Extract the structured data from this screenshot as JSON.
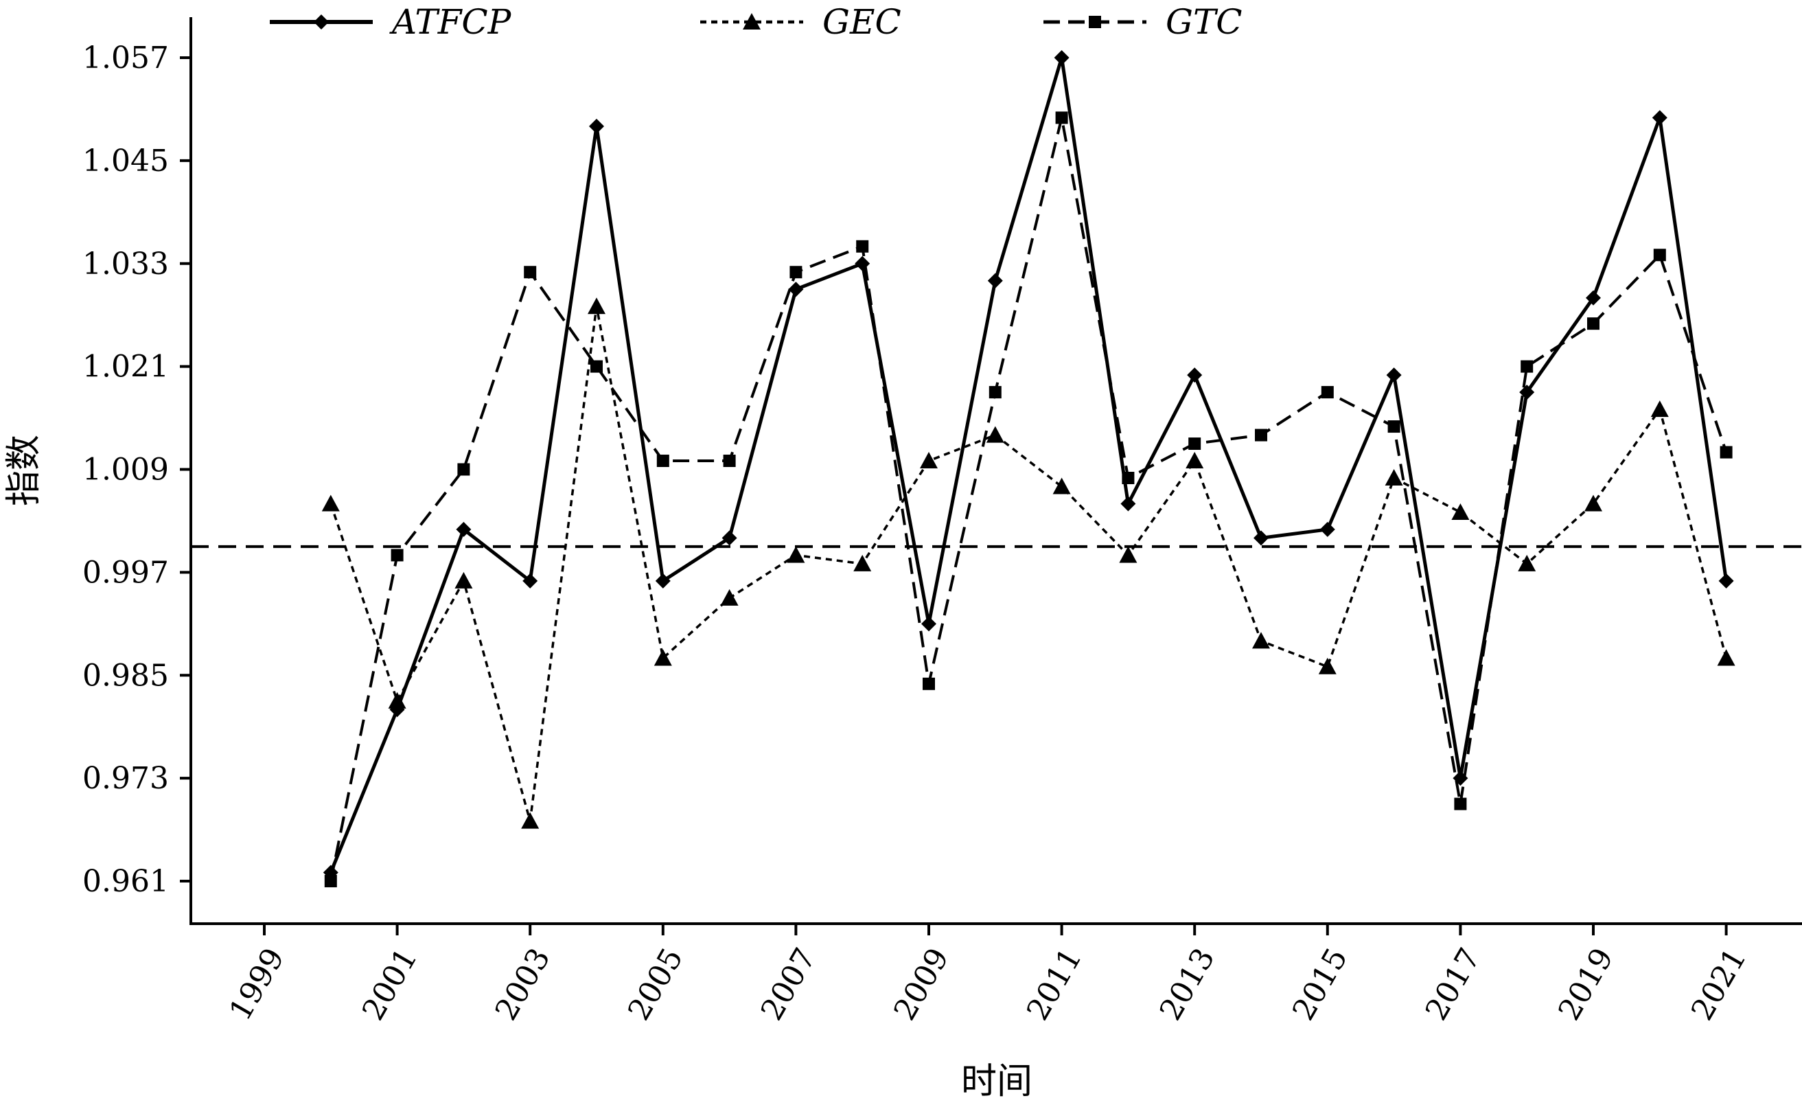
{
  "chart_data": {
    "type": "line",
    "title": "",
    "xlabel": "时间",
    "ylabel": "指数",
    "x": [
      2000,
      2001,
      2002,
      2003,
      2004,
      2005,
      2006,
      2007,
      2008,
      2009,
      2010,
      2011,
      2012,
      2013,
      2014,
      2015,
      2016,
      2017,
      2018,
      2019,
      2020,
      2021
    ],
    "x_ticks": [
      "1999",
      "2001",
      "2003",
      "2005",
      "2007",
      "2009",
      "2011",
      "2013",
      "2015",
      "2017",
      "2019",
      "2021"
    ],
    "y_ticks": [
      "0.961",
      "0.973",
      "0.985",
      "0.997",
      "1.009",
      "1.021",
      "1.033",
      "1.045",
      "1.057"
    ],
    "xlim": [
      1999,
      2022
    ],
    "ylim": [
      0.956,
      1.062
    ],
    "reference_line": 1.0,
    "legend_position": "top",
    "series": [
      {
        "name": "ATFCP",
        "line": "solid",
        "marker": "diamond",
        "values": [
          0.962,
          0.981,
          1.002,
          0.996,
          1.049,
          0.996,
          1.001,
          1.03,
          1.033,
          0.991,
          1.031,
          1.057,
          1.005,
          1.02,
          1.001,
          1.002,
          1.02,
          0.973,
          1.018,
          1.029,
          1.05,
          0.996
        ]
      },
      {
        "name": "GEC",
        "line": "dotted",
        "marker": "triangle",
        "values": [
          1.005,
          0.982,
          0.996,
          0.968,
          1.028,
          0.987,
          0.994,
          0.999,
          0.998,
          1.01,
          1.013,
          1.007,
          0.999,
          1.01,
          0.989,
          0.986,
          1.008,
          1.004,
          0.998,
          1.005,
          1.016,
          0.987
        ]
      },
      {
        "name": "GTC",
        "line": "dashed",
        "marker": "square",
        "values": [
          0.961,
          0.999,
          1.009,
          1.032,
          1.021,
          1.01,
          1.01,
          1.032,
          1.035,
          0.984,
          1.018,
          1.05,
          1.008,
          1.012,
          1.013,
          1.018,
          1.014,
          0.97,
          1.021,
          1.026,
          1.034,
          1.011
        ]
      }
    ]
  }
}
